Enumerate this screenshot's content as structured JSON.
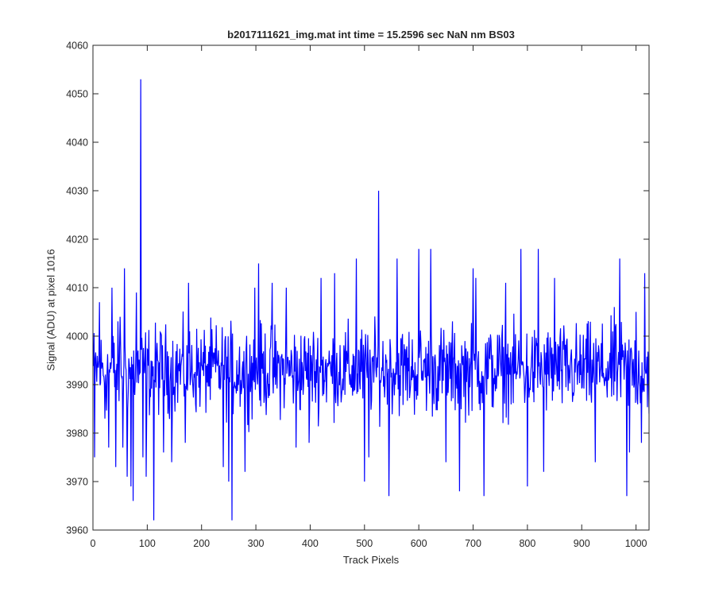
{
  "chart_data": {
    "type": "line",
    "title": "b2017111621_img.mat int time = 15.2596 sec  NaN nm BS03",
    "xlabel": "Track Pixels",
    "ylabel": "Signal (ADU) at pixel 1016",
    "xlim": [
      0,
      1024
    ],
    "ylim": [
      3960,
      4060
    ],
    "xticks": [
      0,
      100,
      200,
      300,
      400,
      500,
      600,
      700,
      800,
      900,
      1000
    ],
    "yticks": [
      3960,
      3970,
      3980,
      3990,
      4000,
      4010,
      4020,
      4030,
      4040,
      4050,
      4060
    ],
    "grid": false,
    "series": [
      {
        "color": "#0000ff",
        "x_start": 1,
        "x_step": 1,
        "count": 1024,
        "baseline": 3993,
        "noise_amplitude": 9,
        "peaks": [
          {
            "x": 3,
            "y": 3975
          },
          {
            "x": 12,
            "y": 4007
          },
          {
            "x": 22,
            "y": 3983
          },
          {
            "x": 29,
            "y": 3977
          },
          {
            "x": 35,
            "y": 4010
          },
          {
            "x": 42,
            "y": 3973
          },
          {
            "x": 50,
            "y": 4004
          },
          {
            "x": 55,
            "y": 3977
          },
          {
            "x": 58,
            "y": 4014
          },
          {
            "x": 63,
            "y": 3971
          },
          {
            "x": 70,
            "y": 3969
          },
          {
            "x": 74,
            "y": 3966
          },
          {
            "x": 80,
            "y": 4009
          },
          {
            "x": 88,
            "y": 4053
          },
          {
            "x": 92,
            "y": 3975
          },
          {
            "x": 98,
            "y": 3971
          },
          {
            "x": 112,
            "y": 3962
          },
          {
            "x": 130,
            "y": 3976
          },
          {
            "x": 145,
            "y": 3974
          },
          {
            "x": 170,
            "y": 3978
          },
          {
            "x": 176,
            "y": 4011
          },
          {
            "x": 240,
            "y": 3973
          },
          {
            "x": 250,
            "y": 3970
          },
          {
            "x": 256,
            "y": 3962
          },
          {
            "x": 280,
            "y": 3972
          },
          {
            "x": 298,
            "y": 4010
          },
          {
            "x": 305,
            "y": 4015
          },
          {
            "x": 330,
            "y": 4011
          },
          {
            "x": 356,
            "y": 4010
          },
          {
            "x": 374,
            "y": 3977
          },
          {
            "x": 398,
            "y": 3978
          },
          {
            "x": 420,
            "y": 4012
          },
          {
            "x": 445,
            "y": 4013
          },
          {
            "x": 485,
            "y": 4016
          },
          {
            "x": 500,
            "y": 3970
          },
          {
            "x": 508,
            "y": 3975
          },
          {
            "x": 526,
            "y": 4030
          },
          {
            "x": 545,
            "y": 3967
          },
          {
            "x": 560,
            "y": 4016
          },
          {
            "x": 600,
            "y": 4018
          },
          {
            "x": 622,
            "y": 4018
          },
          {
            "x": 650,
            "y": 3974
          },
          {
            "x": 675,
            "y": 3968
          },
          {
            "x": 700,
            "y": 4014
          },
          {
            "x": 705,
            "y": 4012
          },
          {
            "x": 720,
            "y": 3967
          },
          {
            "x": 760,
            "y": 4011
          },
          {
            "x": 788,
            "y": 4018
          },
          {
            "x": 800,
            "y": 3969
          },
          {
            "x": 820,
            "y": 4018
          },
          {
            "x": 830,
            "y": 3972
          },
          {
            "x": 850,
            "y": 4012
          },
          {
            "x": 925,
            "y": 3974
          },
          {
            "x": 960,
            "y": 4006
          },
          {
            "x": 970,
            "y": 4016
          },
          {
            "x": 983,
            "y": 3967
          },
          {
            "x": 988,
            "y": 3976
          },
          {
            "x": 1000,
            "y": 4005
          },
          {
            "x": 1010,
            "y": 3978
          },
          {
            "x": 1016,
            "y": 4013
          },
          {
            "x": 1024,
            "y": 3984
          }
        ]
      }
    ]
  }
}
